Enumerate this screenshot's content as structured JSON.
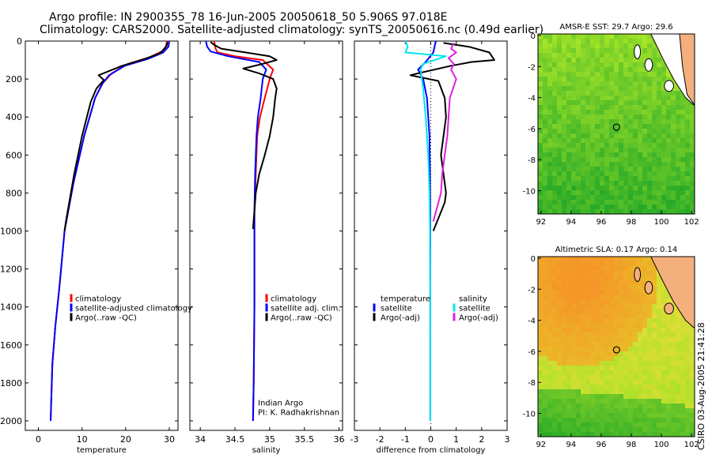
{
  "title_line1": "Argo profile: IN 2900355_78 16-Jun-2005 20050618_50 5.906S 97.018E",
  "title_line2": "Climatology: CARS2000. Satellite-adjusted climatology: synTS_20050616.nc (0.49d earlier)",
  "footer_side": "CSIRO 03-Aug-2005 21:41:28",
  "colors": {
    "climatology": "#ff0000",
    "satellite": "#0000ff",
    "argo": "#000000",
    "sal_sat": "#00e5ee",
    "sal_argo": "#e020e0"
  },
  "chart_data": [
    {
      "type": "line",
      "xlabel": "temperature",
      "xlim": [
        -3,
        32
      ],
      "ylim": [
        0,
        2050
      ],
      "xticks": [
        0,
        10,
        20,
        30
      ],
      "yticks": [
        0,
        200,
        400,
        600,
        800,
        1000,
        1200,
        1400,
        1600,
        1800,
        2000
      ],
      "legend": [
        "climatology",
        "satellite-adjusted climatology",
        "Argo(..raw -QC)"
      ],
      "series": [
        {
          "name": "climatology",
          "color": "red",
          "x": [
            29.5,
            29.2,
            28.3,
            25.5,
            20.5,
            16.8,
            14.8,
            13.0,
            10.5,
            8.0,
            6.0,
            4.8,
            3.9,
            3.2,
            2.8
          ],
          "y": [
            0,
            30,
            55,
            85,
            120,
            170,
            220,
            300,
            500,
            750,
            1000,
            1300,
            1500,
            1700,
            2000
          ]
        },
        {
          "name": "satellite-adjusted climatology",
          "color": "blue",
          "x": [
            30.0,
            29.8,
            28.6,
            25.0,
            19.8,
            16.2,
            14.6,
            13.0,
            10.5,
            8.0,
            6.0,
            4.8,
            3.9,
            3.2,
            2.8
          ],
          "y": [
            0,
            30,
            60,
            95,
            130,
            180,
            225,
            300,
            500,
            750,
            1000,
            1300,
            1500,
            1700,
            2000
          ]
        },
        {
          "name": "Argo(..raw -QC)",
          "color": "black",
          "x": [
            29.6,
            29.4,
            28.7,
            27.8,
            24.3,
            19.2,
            13.8,
            15.0,
            13.3,
            12.0,
            10.0,
            8.2,
            6.3,
            6.0
          ],
          "y": [
            5,
            25,
            45,
            65,
            95,
            130,
            180,
            205,
            250,
            320,
            500,
            700,
            950,
            1000
          ]
        }
      ]
    },
    {
      "type": "line",
      "xlabel": "salinity",
      "xlim": [
        33.85,
        36.05
      ],
      "ylim": [
        0,
        2050
      ],
      "xticks": [
        34,
        34.5,
        35,
        35.5,
        36
      ],
      "yticks": [
        0,
        200,
        400,
        600,
        800,
        1000,
        1200,
        1400,
        1600,
        1800,
        2000
      ],
      "legend": [
        "climatology",
        "satellite adj. clim.",
        "Argo(..raw -QC)"
      ],
      "annotations": [
        "Indian Argo",
        "PI: K. Radhakrishnan"
      ],
      "series": [
        {
          "name": "climatology",
          "color": "red",
          "x": [
            34.2,
            34.22,
            34.25,
            34.5,
            34.9,
            35.05,
            35.0,
            34.93,
            34.86,
            34.82,
            34.8,
            34.78,
            34.78,
            34.78,
            34.77,
            34.76
          ],
          "y": [
            0,
            40,
            60,
            80,
            100,
            150,
            200,
            300,
            400,
            500,
            700,
            900,
            1000,
            1400,
            1800,
            2000
          ]
        },
        {
          "name": "satellite adj. clim.",
          "color": "blue",
          "x": [
            34.08,
            34.1,
            34.15,
            34.4,
            34.85,
            34.95,
            34.9,
            34.87,
            34.83,
            34.81,
            34.79,
            34.78,
            34.78,
            34.78,
            34.77,
            34.76
          ],
          "y": [
            0,
            30,
            55,
            80,
            110,
            150,
            200,
            300,
            400,
            500,
            700,
            900,
            1000,
            1400,
            1800,
            2000
          ]
        },
        {
          "name": "Argo(..raw -QC)",
          "color": "black",
          "x": [
            34.15,
            34.2,
            34.3,
            34.65,
            35.0,
            35.1,
            34.9,
            34.62,
            34.85,
            35.05,
            35.1,
            35.08,
            35.05,
            35.0,
            34.93,
            34.85,
            34.8,
            34.76
          ],
          "y": [
            5,
            20,
            40,
            60,
            80,
            100,
            120,
            145,
            170,
            200,
            250,
            300,
            400,
            500,
            600,
            700,
            800,
            990
          ]
        }
      ]
    },
    {
      "type": "line",
      "xlabel": "difference from climatology",
      "xlim": [
        -3,
        3
      ],
      "ylim": [
        0,
        2050
      ],
      "xticks": [
        -3,
        -2,
        -1,
        0,
        1,
        2,
        3
      ],
      "yticks": [
        0,
        200,
        400,
        600,
        800,
        1000,
        1200,
        1400,
        1600,
        1800,
        2000
      ],
      "legend_left": [
        "temperature",
        "satellite",
        "Argo(-adj)"
      ],
      "legend_right": [
        "salinity",
        "satellite",
        "Argo(-adj)"
      ],
      "series": [
        {
          "name": "temperature satellite",
          "color": "blue",
          "x": [
            0.2,
            0.1,
            -0.2,
            -0.5,
            -0.3,
            -0.15,
            -0.05,
            -0.03,
            -0.02,
            -0.02,
            -0.02,
            -0.02,
            -0.02,
            -0.02
          ],
          "y": [
            0,
            60,
            110,
            150,
            200,
            300,
            500,
            700,
            900,
            1100,
            1400,
            1700,
            1900,
            2000
          ]
        },
        {
          "name": "temperature Argo(-adj)",
          "color": "black",
          "x": [
            0.5,
            1.5,
            2.3,
            2.5,
            1.6,
            0.8,
            -0.5,
            -0.8,
            0.3,
            0.55,
            0.6,
            0.5,
            0.4,
            0.5,
            0.6,
            0.55,
            0.4,
            0.1
          ],
          "y": [
            10,
            30,
            60,
            100,
            110,
            130,
            170,
            180,
            210,
            300,
            400,
            500,
            600,
            700,
            800,
            850,
            900,
            1000
          ]
        },
        {
          "name": "salinity satellite",
          "color": "cyan",
          "x": [
            -1.0,
            -0.9,
            -1.0,
            0.6,
            -0.3,
            -0.4,
            -0.3,
            -0.2,
            -0.1,
            -0.05,
            -0.03,
            -0.02,
            -0.02,
            -0.02,
            -0.02
          ],
          "y": [
            0,
            30,
            60,
            80,
            120,
            150,
            250,
            400,
            600,
            800,
            1000,
            1300,
            1600,
            1900,
            2000
          ]
        },
        {
          "name": "salinity Argo(-adj)",
          "color": "magenta",
          "x": [
            0.9,
            0.8,
            1.0,
            0.7,
            0.9,
            0.8,
            1.0,
            0.75,
            0.7,
            0.65,
            0.55,
            0.45,
            0.4,
            0.1
          ],
          "y": [
            10,
            40,
            60,
            90,
            120,
            150,
            200,
            300,
            400,
            500,
            600,
            700,
            800,
            950
          ]
        }
      ]
    },
    {
      "type": "heatmap",
      "title": "AMSR-E SST: 29.7 Argo: 29.6",
      "xlim": [
        91.8,
        102.2
      ],
      "ylim": [
        -11.5,
        0.1
      ],
      "xticks": [
        92,
        94,
        96,
        98,
        100,
        102
      ],
      "yticks": [
        0,
        -2,
        -4,
        -6,
        -8,
        -10
      ],
      "marker": [
        97.018,
        -5.906
      ]
    },
    {
      "type": "heatmap",
      "title": "Altimetric SLA: 0.17 Argo: 0.14",
      "xlim": [
        91.8,
        102.2
      ],
      "ylim": [
        -11.5,
        0.1
      ],
      "xticks": [
        92,
        94,
        96,
        98,
        100,
        102
      ],
      "yticks": [
        0,
        -2,
        -4,
        -6,
        -8,
        -10
      ],
      "marker": [
        97.018,
        -5.906
      ]
    }
  ]
}
